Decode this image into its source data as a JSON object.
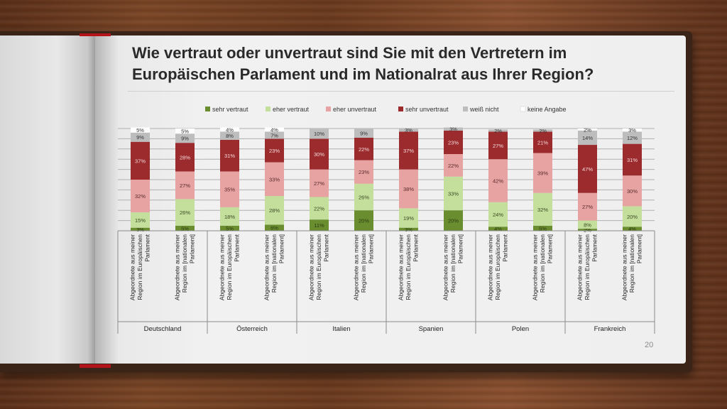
{
  "title": "Wie vertraut oder unvertraut sind Sie mit den Vertretern im Europäischen Parlament und im Nationalrat aus Ihrer Region?",
  "page_number": "20",
  "colors": {
    "sehr_vertraut": "#6a8e2f",
    "eher_vertraut": "#c4de9c",
    "eher_unvertraut": "#e6a3a2",
    "sehr_unvertraut": "#9c2b2e",
    "weiss_nicht": "#bdbdbd",
    "keine_angabe": "#ffffff"
  },
  "chart_data": {
    "type": "bar",
    "stacked": true,
    "legend": [
      "sehr vertraut",
      "eher vertraut",
      "eher unvertraut",
      "sehr unvertraut",
      "weiß nicht",
      "keine Angabe"
    ],
    "ylim": [
      0,
      100
    ],
    "grid": true,
    "groups": [
      "Deutschland",
      "Österreich",
      "Italien",
      "Spanien",
      "Polen",
      "Frankreich"
    ],
    "category_labels": [
      [
        "Abgeordnete aus meiner",
        "Region im Europäischen",
        "Parlament"
      ],
      [
        "Abgeordnete aus meiner",
        "Region im [nationalen",
        "Parlament]"
      ]
    ],
    "bars": [
      {
        "group": "Deutschland",
        "values": [
          3,
          15,
          32,
          37,
          9,
          5
        ]
      },
      {
        "group": "Deutschland",
        "values": [
          5,
          26,
          27,
          28,
          9,
          5
        ]
      },
      {
        "group": "Österreich",
        "values": [
          5,
          18,
          35,
          31,
          8,
          4
        ]
      },
      {
        "group": "Österreich",
        "values": [
          6,
          28,
          33,
          23,
          7,
          4
        ]
      },
      {
        "group": "Italien",
        "values": [
          11,
          22,
          27,
          30,
          10,
          0
        ]
      },
      {
        "group": "Italien",
        "values": [
          20,
          26,
          23,
          22,
          9,
          0
        ]
      },
      {
        "group": "Spanien",
        "values": [
          3,
          19,
          38,
          37,
          3,
          0
        ]
      },
      {
        "group": "Spanien",
        "values": [
          20,
          33,
          22,
          23,
          3,
          0
        ]
      },
      {
        "group": "Polen",
        "values": [
          4,
          24,
          42,
          27,
          2,
          0
        ]
      },
      {
        "group": "Polen",
        "values": [
          5,
          32,
          39,
          21,
          2,
          0
        ]
      },
      {
        "group": "Frankreich",
        "values": [
          2,
          8,
          27,
          47,
          14,
          2
        ]
      },
      {
        "group": "Frankreich",
        "values": [
          4,
          20,
          30,
          31,
          12,
          3
        ]
      }
    ]
  }
}
